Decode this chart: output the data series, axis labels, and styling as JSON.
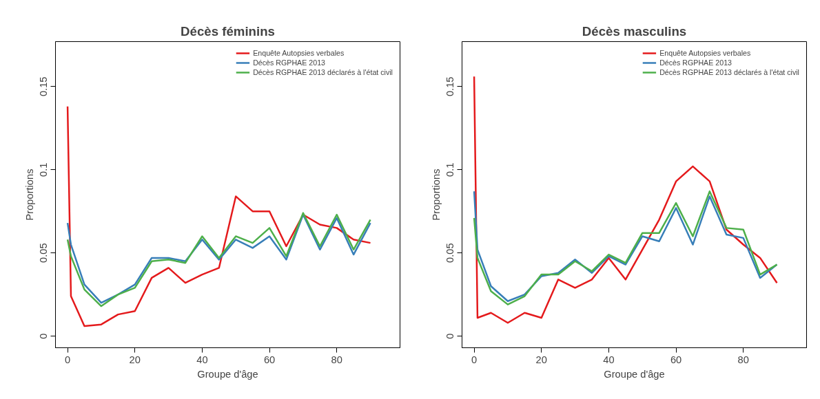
{
  "chart_data": [
    {
      "type": "line",
      "title": "Décès féminins",
      "xlabel": "Groupe d'âge",
      "ylabel": "Proportions",
      "x": [
        0,
        1,
        5,
        10,
        15,
        20,
        25,
        30,
        35,
        40,
        45,
        50,
        55,
        60,
        65,
        70,
        75,
        80,
        85,
        90
      ],
      "xlim": [
        -3.6,
        98.8
      ],
      "ylim": [
        -0.007,
        0.177
      ],
      "xticks": [
        0,
        20,
        40,
        60,
        80
      ],
      "yticks": [
        0,
        0.05,
        0.1,
        0.15
      ],
      "grid": false,
      "legend": "top right",
      "line_style": "solid",
      "series": [
        {
          "name": "Enquête Autopsies verbales",
          "color": "#e41a1c",
          "values": [
            0.138,
            0.024,
            0.006,
            0.007,
            0.013,
            0.015,
            0.035,
            0.041,
            0.032,
            0.037,
            0.041,
            0.084,
            0.075,
            0.075,
            0.054,
            0.073,
            0.067,
            0.065,
            0.058,
            0.056
          ]
        },
        {
          "name": "Décès RGPHAE 2013",
          "color": "#377eb8",
          "values": [
            0.068,
            0.055,
            0.031,
            0.02,
            0.025,
            0.031,
            0.047,
            0.047,
            0.045,
            0.058,
            0.046,
            0.058,
            0.053,
            0.06,
            0.046,
            0.073,
            0.052,
            0.071,
            0.049,
            0.068
          ]
        },
        {
          "name": "Décès RGPHAE 2013 déclarés à l'état civil",
          "color": "#4daf4a",
          "values": [
            0.058,
            0.048,
            0.028,
            0.018,
            0.025,
            0.029,
            0.045,
            0.046,
            0.044,
            0.06,
            0.047,
            0.06,
            0.056,
            0.065,
            0.048,
            0.074,
            0.054,
            0.073,
            0.052,
            0.07
          ]
        }
      ]
    },
    {
      "type": "line",
      "title": "Décès masculins",
      "xlabel": "Groupe d'âge",
      "ylabel": "Proportions",
      "x": [
        0,
        1,
        5,
        10,
        15,
        20,
        25,
        30,
        35,
        40,
        45,
        50,
        55,
        60,
        65,
        70,
        75,
        80,
        85,
        90
      ],
      "xlim": [
        -3.6,
        98.8
      ],
      "ylim": [
        -0.007,
        0.177
      ],
      "xticks": [
        0,
        20,
        40,
        60,
        80
      ],
      "yticks": [
        0,
        0.05,
        0.1,
        0.15
      ],
      "grid": false,
      "legend": "top right",
      "line_style": "solid",
      "series": [
        {
          "name": "Enquête Autopsies verbales",
          "color": "#e41a1c",
          "values": [
            0.156,
            0.011,
            0.014,
            0.008,
            0.014,
            0.011,
            0.034,
            0.029,
            0.034,
            0.047,
            0.034,
            0.052,
            0.07,
            0.093,
            0.102,
            0.093,
            0.064,
            0.055,
            0.047,
            0.032
          ]
        },
        {
          "name": "Décès RGPHAE 2013",
          "color": "#377eb8",
          "values": [
            0.087,
            0.052,
            0.03,
            0.021,
            0.025,
            0.036,
            0.038,
            0.046,
            0.038,
            0.048,
            0.043,
            0.06,
            0.057,
            0.077,
            0.055,
            0.084,
            0.061,
            0.059,
            0.035,
            0.043
          ]
        },
        {
          "name": "Décès RGPHAE 2013 déclarés à l'état civil",
          "color": "#4daf4a",
          "values": [
            0.071,
            0.047,
            0.027,
            0.019,
            0.024,
            0.037,
            0.037,
            0.045,
            0.039,
            0.049,
            0.044,
            0.062,
            0.062,
            0.08,
            0.06,
            0.087,
            0.065,
            0.064,
            0.037,
            0.043
          ]
        }
      ]
    }
  ]
}
